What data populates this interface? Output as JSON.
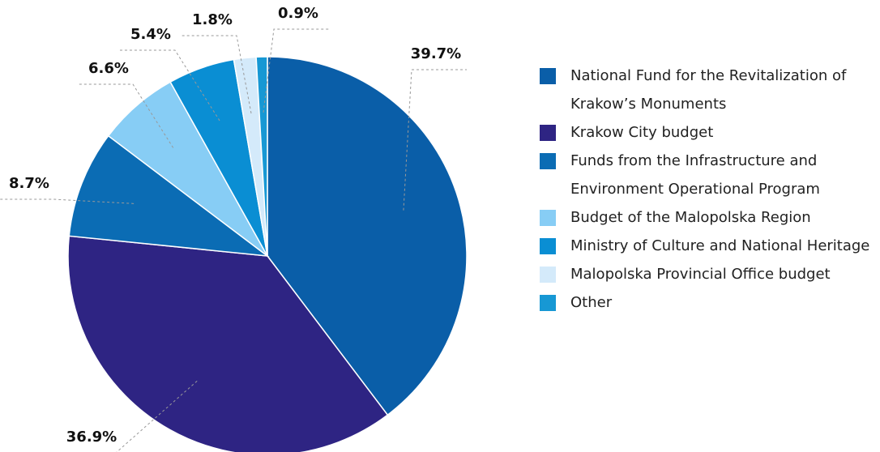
{
  "chart_data": {
    "type": "pie",
    "categories": [
      "National Fund for the Revitalization of Krakow’s Monuments",
      "Krakow City budget",
      "Funds from the Infrastructure and Environment Operational Program",
      "Budget of the Malopolska Region",
      "Ministry of Culture and National Heritage",
      "Malopolska Provincial Office budget",
      "Other"
    ],
    "values": [
      39.7,
      36.9,
      8.7,
      6.6,
      5.4,
      1.8,
      0.9
    ],
    "value_labels": [
      "39.7%",
      "36.9%",
      "8.7%",
      "6.6%",
      "5.4%",
      "1.8%",
      "0.9%"
    ],
    "colors": [
      "#0a5ea8",
      "#2e2483",
      "#0b6cb4",
      "#87cdf5",
      "#0a8ed3",
      "#d4eafa",
      "#1798d4"
    ],
    "legend": "right"
  }
}
